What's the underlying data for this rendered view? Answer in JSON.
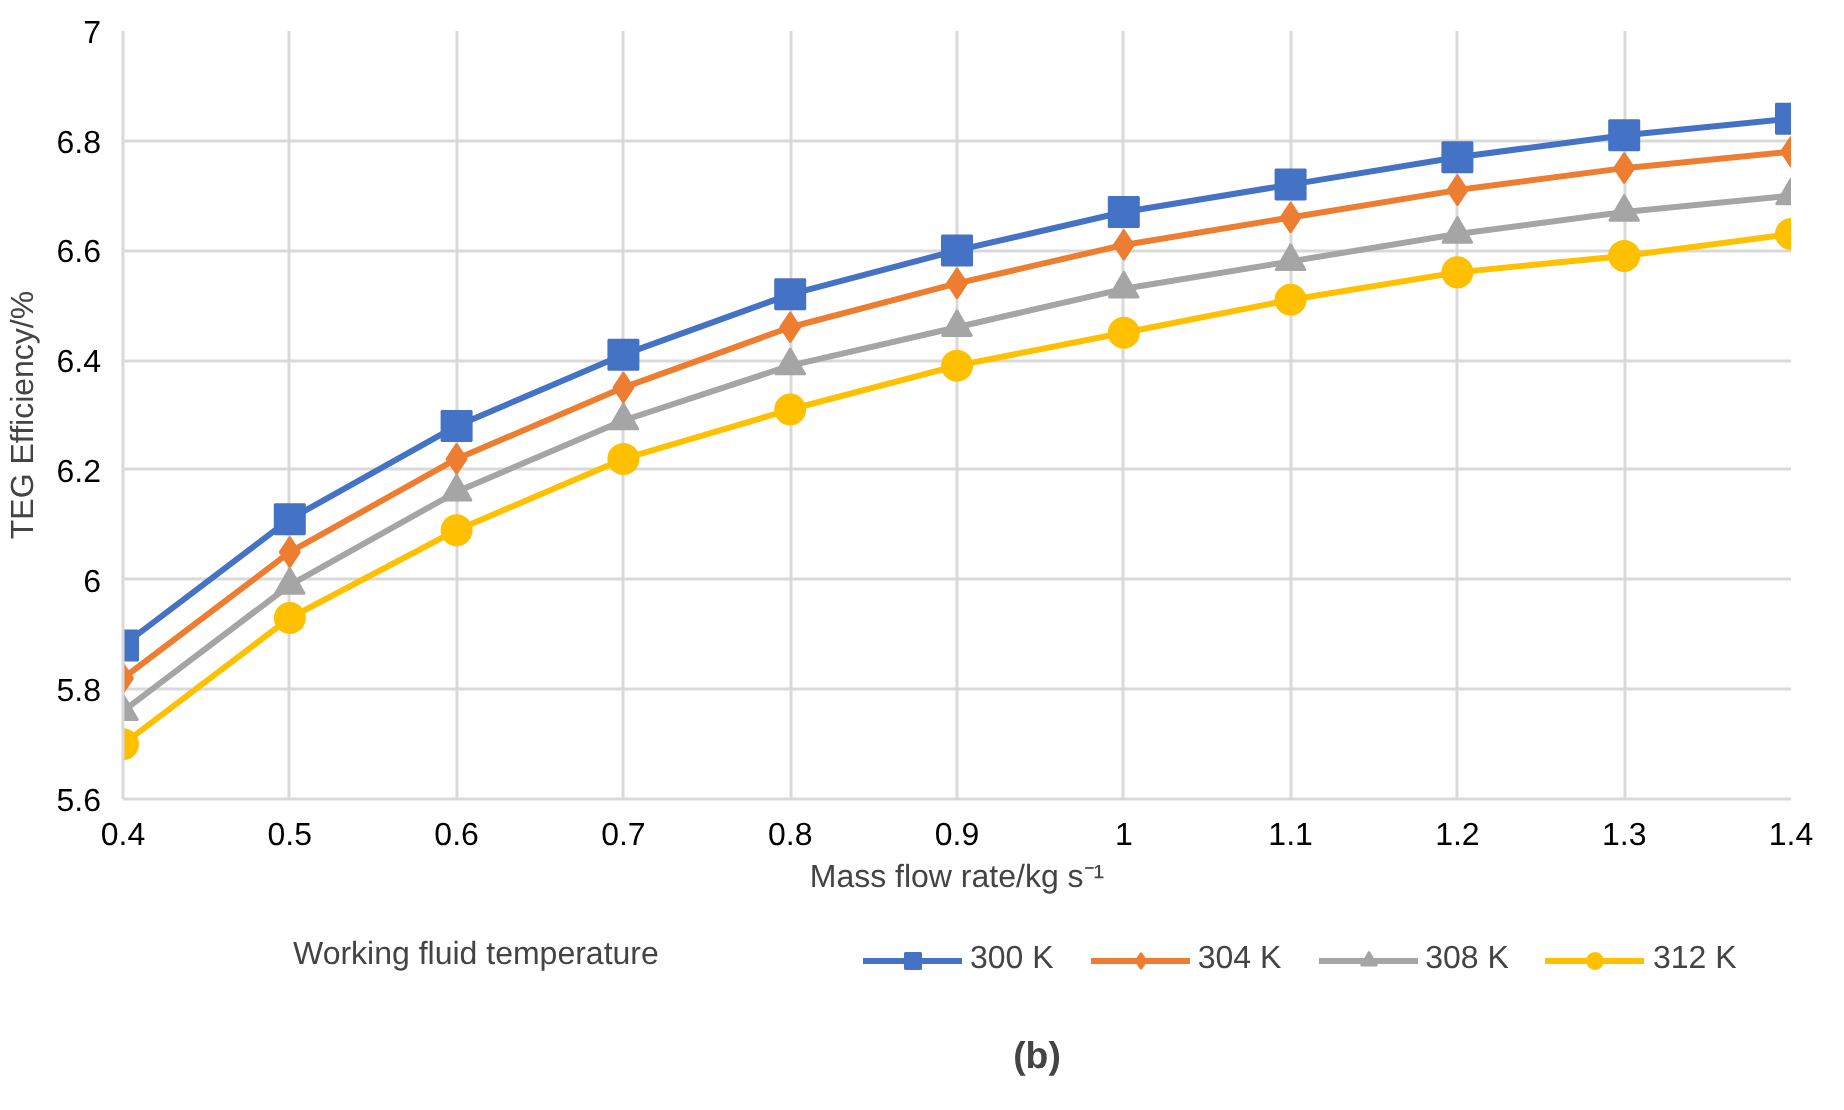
{
  "chart_data": {
    "type": "line",
    "xlabel": "Mass flow rate/kg s⁻¹",
    "ylabel": "TEG Efficiency/%",
    "legend_title": "Working fluid temperature",
    "annotations": [
      "(b)"
    ],
    "x": [
      0.4,
      0.5,
      0.6,
      0.7,
      0.8,
      0.9,
      1.0,
      1.1,
      1.2,
      1.3,
      1.4
    ],
    "series": [
      {
        "name": "300 K",
        "color": "#4472c4",
        "marker": "square",
        "values": [
          5.88,
          6.11,
          6.28,
          6.41,
          6.52,
          6.6,
          6.67,
          6.72,
          6.77,
          6.81,
          6.84
        ]
      },
      {
        "name": "304 K",
        "color": "#ed7d31",
        "marker": "diamond",
        "values": [
          5.82,
          6.05,
          6.22,
          6.35,
          6.46,
          6.54,
          6.61,
          6.66,
          6.71,
          6.75,
          6.78
        ]
      },
      {
        "name": "308 K",
        "color": "#a5a5a5",
        "marker": "triangle",
        "values": [
          5.76,
          5.99,
          6.16,
          6.29,
          6.39,
          6.46,
          6.53,
          6.58,
          6.63,
          6.67,
          6.7
        ]
      },
      {
        "name": "312 K",
        "color": "#ffc000",
        "marker": "circle",
        "values": [
          5.7,
          5.93,
          6.09,
          6.22,
          6.31,
          6.39,
          6.45,
          6.51,
          6.56,
          6.59,
          6.63
        ]
      }
    ],
    "xlim": [
      0.4,
      1.4
    ],
    "xticks": [
      0.4,
      0.5,
      0.6,
      0.7,
      0.8,
      0.9,
      {
        "value": 1.0,
        "label": "1"
      },
      1.1,
      1.2,
      1.3,
      1.4
    ],
    "ylim": [
      5.6,
      7
    ],
    "yticks": [
      5.6,
      5.8,
      {
        "value": 6,
        "label": "6"
      },
      6.2,
      6.4,
      6.6,
      6.8,
      {
        "value": 7,
        "label": "7"
      }
    ],
    "grid": true,
    "legend": "bottom",
    "line_style": "solid"
  }
}
